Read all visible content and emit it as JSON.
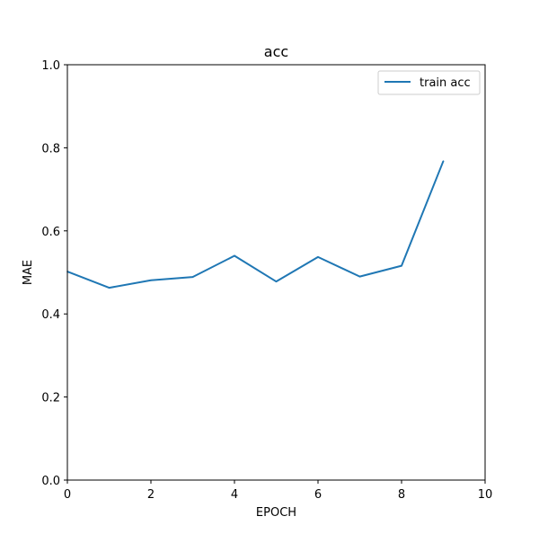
{
  "chart_data": {
    "type": "line",
    "title": "acc",
    "xlabel": "EPOCH",
    "ylabel": "MAE",
    "xlim": [
      0,
      10
    ],
    "ylim": [
      0.0,
      1.0
    ],
    "x_ticks": [
      "0",
      "2",
      "4",
      "6",
      "8",
      "10"
    ],
    "y_ticks": [
      "0.0",
      "0.2",
      "0.4",
      "0.6",
      "0.8",
      "1.0"
    ],
    "grid": false,
    "legend_position": "top-right",
    "series": [
      {
        "name": "train acc",
        "color": "#1f77b4",
        "x": [
          0,
          1,
          2,
          3,
          4,
          5,
          6,
          7,
          8,
          9
        ],
        "y": [
          0.502,
          0.463,
          0.481,
          0.489,
          0.54,
          0.478,
          0.537,
          0.49,
          0.516,
          0.768
        ]
      }
    ]
  }
}
